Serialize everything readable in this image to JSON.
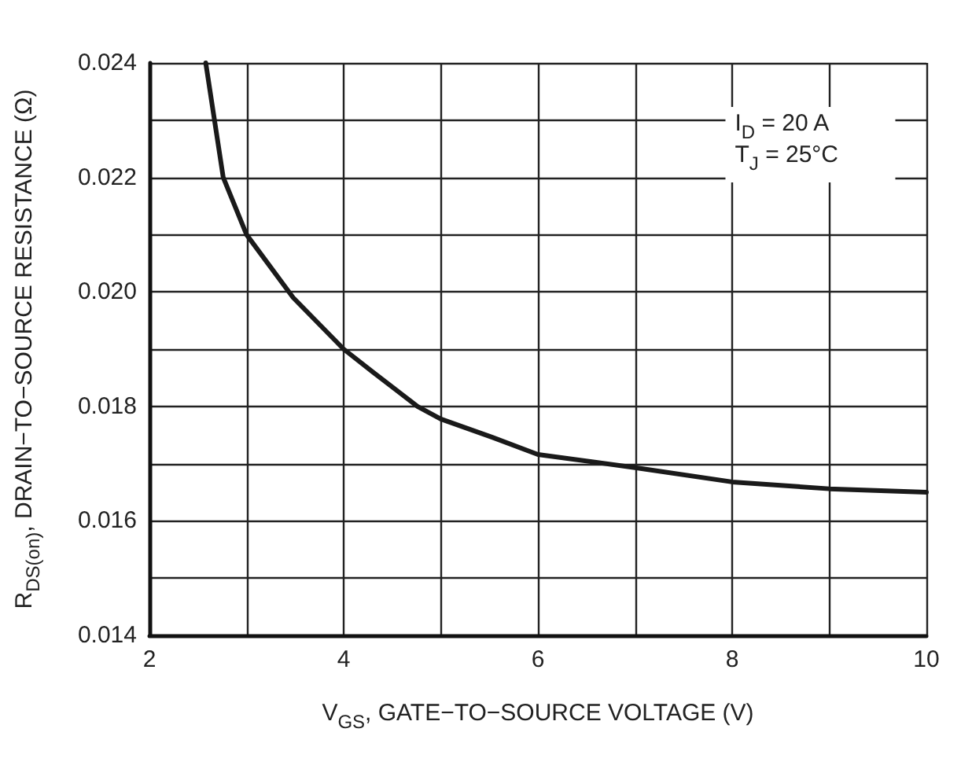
{
  "chart_data": {
    "type": "line",
    "xlabel": "V$_{GS}$, GATE−TO−SOURCE VOLTAGE (V)",
    "ylabel": "R$_{DS(on)}$, DRAIN−TO−SOURCE RESISTANCE (Ω)",
    "annotations": [
      "I$_{D}$ = 20 A",
      "T$_{J}$ = 25°C"
    ],
    "xlim": [
      2,
      10
    ],
    "xticks": [
      2,
      {
        "value": 3,
        "label": null
      },
      4,
      {
        "value": 5,
        "label": null
      },
      6,
      {
        "value": 7,
        "label": null
      },
      8,
      {
        "value": 9,
        "label": null
      },
      10
    ],
    "ylim": [
      0.014,
      0.024
    ],
    "yticks": [
      0.014,
      {
        "value": 0.015,
        "label": null
      },
      0.016,
      {
        "value": 0.017,
        "label": null
      },
      0.018,
      {
        "value": 0.019,
        "label": null
      },
      {
        "value": 0.02,
        "label": "0.020"
      },
      {
        "value": 0.021,
        "label": null
      },
      0.022,
      {
        "value": 0.023,
        "label": null
      },
      0.024
    ],
    "grid": true,
    "series": [
      {
        "color": "#1a1a1a",
        "x": [
          2.58,
          2.76,
          3.0,
          3.48,
          4.0,
          4.3,
          4.76,
          5.0,
          5.53,
          6.0,
          7.0,
          8.0,
          9.0,
          10.0
        ],
        "values": [
          0.024,
          0.022,
          0.021,
          0.0199,
          0.019,
          0.0186,
          0.018,
          0.01778,
          0.01746,
          0.01716,
          0.01693,
          0.01668,
          0.01656,
          0.0165
        ]
      }
    ]
  }
}
